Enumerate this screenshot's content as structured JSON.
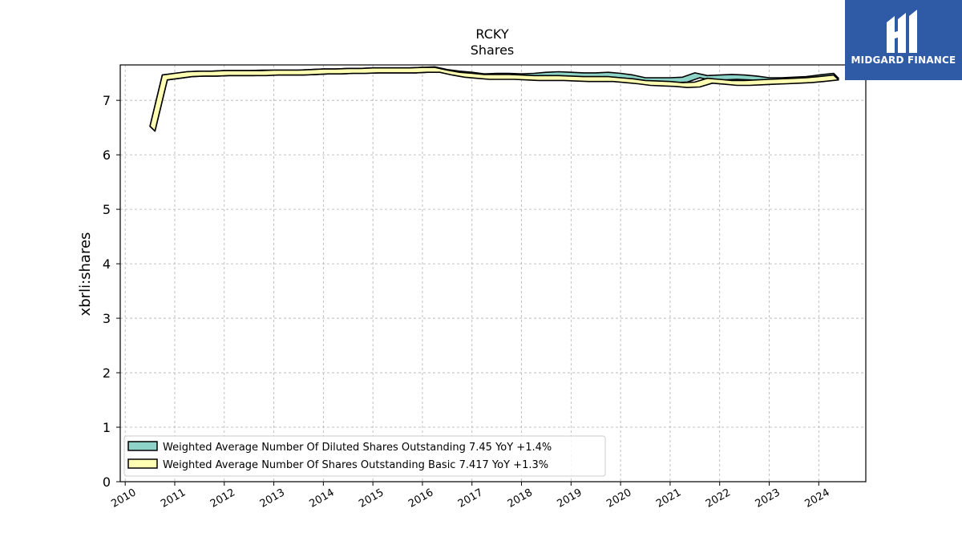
{
  "brand": {
    "name": "MIDGARD FINANCE",
    "bg_color": "#2f5aa6"
  },
  "chart_data": {
    "type": "area",
    "title": "RCKY",
    "subtitle": "Shares",
    "xlabel": "",
    "ylabel": "xbrli:shares",
    "xlim": [
      2009.9,
      2024.95
    ],
    "ylim": [
      0,
      7.65
    ],
    "x_ticks": [
      "2010",
      "2011",
      "2012",
      "2013",
      "2014",
      "2015",
      "2016",
      "2017",
      "2018",
      "2019",
      "2020",
      "2021",
      "2022",
      "2023",
      "2024"
    ],
    "y_ticks": [
      "0",
      "1",
      "2",
      "3",
      "4",
      "5",
      "6",
      "7"
    ],
    "grid": true,
    "legend_position": "lower-left",
    "series": [
      {
        "name": "Weighted Average Number Of Diluted Shares Outstanding",
        "legend_label": "Weighted Average Number Of Diluted Shares Outstanding  7.45 YoY +1.4%",
        "color": "#8dd3c7",
        "x": [
          2010.5,
          2010.75,
          2011.0,
          2011.25,
          2011.5,
          2011.75,
          2012.0,
          2012.25,
          2012.5,
          2012.75,
          2013.0,
          2013.25,
          2013.5,
          2013.75,
          2014.0,
          2014.25,
          2014.5,
          2014.75,
          2015.0,
          2015.25,
          2015.5,
          2015.75,
          2016.0,
          2016.25,
          2016.5,
          2016.75,
          2017.0,
          2017.25,
          2017.5,
          2017.75,
          2018.0,
          2018.25,
          2018.5,
          2018.75,
          2019.0,
          2019.25,
          2019.5,
          2019.75,
          2020.0,
          2020.25,
          2020.5,
          2020.75,
          2021.0,
          2021.25,
          2021.5,
          2021.75,
          2022.0,
          2022.25,
          2022.5,
          2022.75,
          2023.0,
          2023.25,
          2023.5,
          2023.75,
          2024.0,
          2024.3
        ],
        "values": [
          6.48,
          7.42,
          7.45,
          7.48,
          7.49,
          7.49,
          7.5,
          7.5,
          7.5,
          7.51,
          7.51,
          7.51,
          7.51,
          7.52,
          7.53,
          7.53,
          7.54,
          7.54,
          7.55,
          7.55,
          7.55,
          7.55,
          7.56,
          7.57,
          7.52,
          7.49,
          7.47,
          7.44,
          7.45,
          7.45,
          7.44,
          7.45,
          7.47,
          7.48,
          7.47,
          7.46,
          7.46,
          7.47,
          7.45,
          7.42,
          7.37,
          7.37,
          7.37,
          7.38,
          7.46,
          7.41,
          7.42,
          7.43,
          7.42,
          7.4,
          7.37,
          7.37,
          7.38,
          7.39,
          7.42,
          7.45
        ]
      },
      {
        "name": "Weighted Average Number Of Shares Outstanding Basic",
        "legend_label": "Weighted Average Number Of Shares Outstanding Basic  7.417 YoY +1.3%",
        "color": "#ffffb3",
        "x": [
          2010.5,
          2010.75,
          2011.0,
          2011.25,
          2011.5,
          2011.75,
          2012.0,
          2012.25,
          2012.5,
          2012.75,
          2013.0,
          2013.25,
          2013.5,
          2013.75,
          2014.0,
          2014.25,
          2014.5,
          2014.75,
          2015.0,
          2015.25,
          2015.5,
          2015.75,
          2016.0,
          2016.25,
          2016.5,
          2016.75,
          2017.0,
          2017.25,
          2017.5,
          2017.75,
          2018.0,
          2018.25,
          2018.5,
          2018.75,
          2019.0,
          2019.25,
          2019.5,
          2019.75,
          2020.0,
          2020.25,
          2020.5,
          2020.75,
          2021.0,
          2021.25,
          2021.5,
          2021.75,
          2022.0,
          2022.25,
          2022.5,
          2022.75,
          2023.0,
          2023.25,
          2023.5,
          2023.75,
          2024.0,
          2024.3
        ],
        "values": [
          6.48,
          7.42,
          7.45,
          7.48,
          7.49,
          7.49,
          7.5,
          7.5,
          7.5,
          7.5,
          7.51,
          7.51,
          7.51,
          7.52,
          7.53,
          7.53,
          7.54,
          7.54,
          7.55,
          7.55,
          7.55,
          7.55,
          7.56,
          7.56,
          7.51,
          7.47,
          7.45,
          7.43,
          7.43,
          7.43,
          7.42,
          7.41,
          7.41,
          7.41,
          7.4,
          7.39,
          7.39,
          7.39,
          7.37,
          7.35,
          7.32,
          7.31,
          7.3,
          7.28,
          7.29,
          7.36,
          7.34,
          7.32,
          7.32,
          7.33,
          7.34,
          7.35,
          7.36,
          7.37,
          7.39,
          7.42
        ]
      }
    ]
  }
}
